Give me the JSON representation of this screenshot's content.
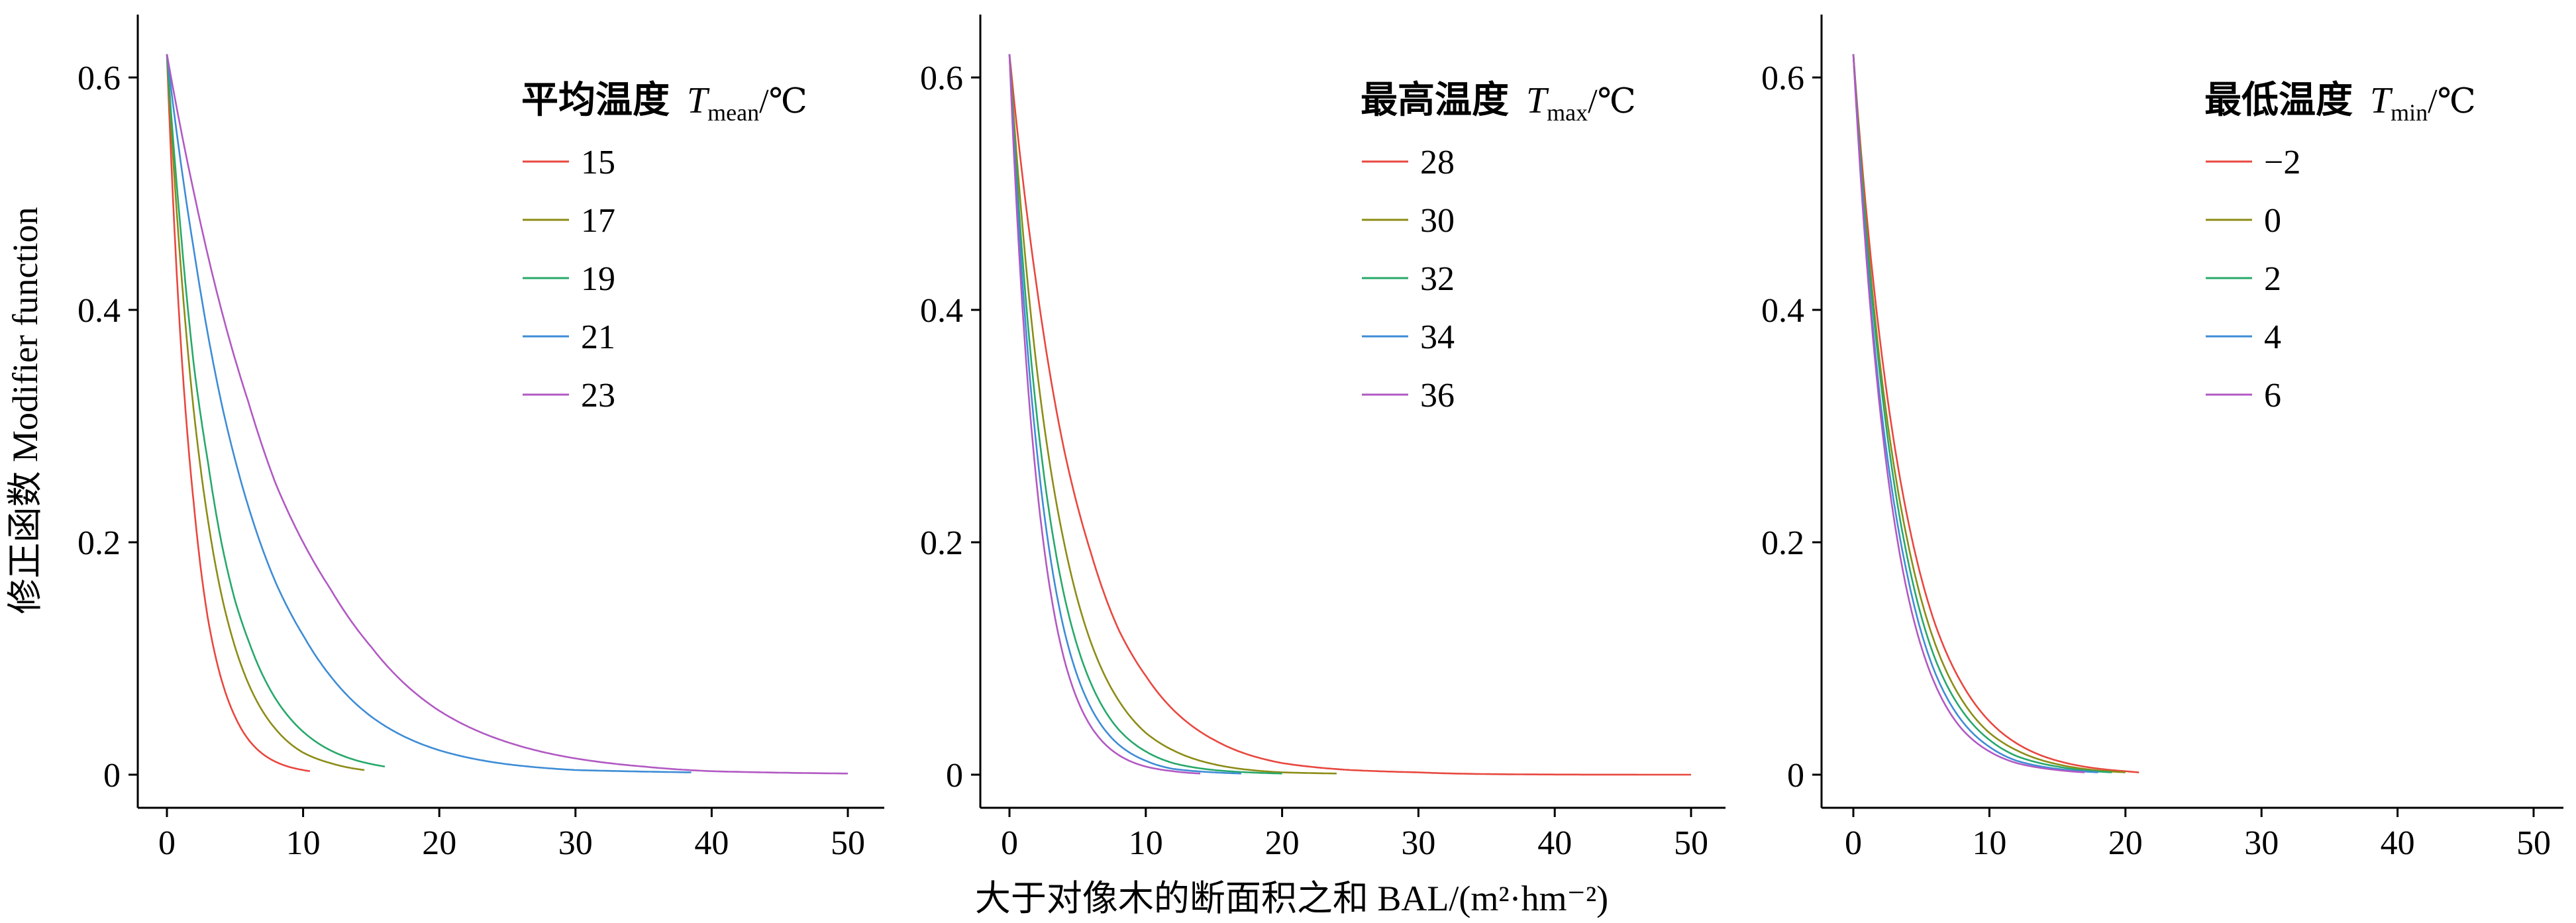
{
  "figure": {
    "ylabel": "修正函数  Modifier function",
    "xlabel": "大于对像木的断面积之和  BAL/(m²·hm⁻²)"
  },
  "chart_data": [
    {
      "type": "line",
      "legend_title": {
        "cn": "平均温度",
        "symbol": "T",
        "subscript": "mean",
        "unit": "/℃"
      },
      "legend_placement": "top-right",
      "xlim": [
        0,
        50
      ],
      "ylim": [
        0,
        0.62
      ],
      "xticks": [
        "0",
        "10",
        "20",
        "30",
        "40",
        "50"
      ],
      "yticks": [
        "0",
        "0.2",
        "0.4",
        "0.6"
      ],
      "grid": false,
      "series": [
        {
          "name": "15",
          "color": "#E8473F",
          "peak": 0.62,
          "x_end": 10.5,
          "points": [
            [
              0,
              0.62
            ],
            [
              1,
              0.375
            ],
            [
              2,
              0.23
            ],
            [
              3,
              0.135
            ],
            [
              4,
              0.082
            ],
            [
              5,
              0.05
            ],
            [
              6,
              0.03
            ],
            [
              8,
              0.011
            ],
            [
              10,
              0.004
            ],
            [
              10.5,
              0.003
            ]
          ]
        },
        {
          "name": "17",
          "color": "#8C8C17",
          "peak": 0.62,
          "x_end": 14.5,
          "points": [
            [
              0,
              0.62
            ],
            [
              1,
              0.44
            ],
            [
              2,
              0.31
            ],
            [
              3,
              0.22
            ],
            [
              4,
              0.155
            ],
            [
              5,
              0.11
            ],
            [
              6,
              0.078
            ],
            [
              8,
              0.039
            ],
            [
              10,
              0.019
            ],
            [
              12,
              0.01
            ],
            [
              14.5,
              0.004
            ]
          ]
        },
        {
          "name": "19",
          "color": "#27A86A",
          "peak": 0.62,
          "x_end": 16,
          "points": [
            [
              0,
              0.62
            ],
            [
              1,
              0.47
            ],
            [
              2,
              0.35
            ],
            [
              3,
              0.27
            ],
            [
              4,
              0.2
            ],
            [
              5,
              0.15
            ],
            [
              6,
              0.115
            ],
            [
              8,
              0.065
            ],
            [
              10,
              0.037
            ],
            [
              12,
              0.021
            ],
            [
              14,
              0.012
            ],
            [
              16,
              0.007
            ]
          ]
        },
        {
          "name": "21",
          "color": "#3E8CD6",
          "peak": 0.62,
          "x_end": 38.5,
          "points": [
            [
              0,
              0.62
            ],
            [
              2,
              0.45
            ],
            [
              4,
              0.32
            ],
            [
              6,
              0.23
            ],
            [
              8,
              0.165
            ],
            [
              10,
              0.12
            ],
            [
              12,
              0.085
            ],
            [
              15,
              0.05
            ],
            [
              20,
              0.021
            ],
            [
              25,
              0.009
            ],
            [
              30,
              0.004
            ],
            [
              38.5,
              0.002
            ]
          ]
        },
        {
          "name": "23",
          "color": "#B159C3",
          "peak": 0.62,
          "x_end": 50,
          "points": [
            [
              0,
              0.62
            ],
            [
              2,
              0.5
            ],
            [
              4,
              0.4
            ],
            [
              6,
              0.32
            ],
            [
              8,
              0.25
            ],
            [
              10,
              0.2
            ],
            [
              12,
              0.16
            ],
            [
              15,
              0.11
            ],
            [
              20,
              0.055
            ],
            [
              25,
              0.028
            ],
            [
              30,
              0.014
            ],
            [
              35,
              0.007
            ],
            [
              40,
              0.003
            ],
            [
              50,
              0.001
            ]
          ]
        }
      ]
    },
    {
      "type": "line",
      "legend_title": {
        "cn": "最高温度",
        "symbol": "T",
        "subscript": "max",
        "unit": "/℃"
      },
      "legend_placement": "top-right",
      "xlim": [
        0,
        50
      ],
      "ylim": [
        0,
        0.62
      ],
      "xticks": [
        "0",
        "10",
        "20",
        "30",
        "40",
        "50"
      ],
      "yticks": [
        "0",
        "0.2",
        "0.4",
        "0.6"
      ],
      "grid": false,
      "series": [
        {
          "name": "28",
          "color": "#E8473F",
          "peak": 0.62,
          "x_end": 50,
          "points": [
            [
              0,
              0.62
            ],
            [
              2,
              0.42
            ],
            [
              4,
              0.28
            ],
            [
              6,
              0.19
            ],
            [
              8,
              0.125
            ],
            [
              10,
              0.085
            ],
            [
              12,
              0.056
            ],
            [
              15,
              0.03
            ],
            [
              20,
              0.01
            ],
            [
              25,
              0.004
            ],
            [
              30,
              0.002
            ],
            [
              50,
              0.0
            ]
          ]
        },
        {
          "name": "30",
          "color": "#8C8C17",
          "peak": 0.62,
          "x_end": 24,
          "points": [
            [
              0,
              0.62
            ],
            [
              2,
              0.35
            ],
            [
              4,
              0.2
            ],
            [
              6,
              0.113
            ],
            [
              8,
              0.064
            ],
            [
              10,
              0.036
            ],
            [
              12,
              0.021
            ],
            [
              15,
              0.009
            ],
            [
              20,
              0.002
            ],
            [
              24,
              0.001
            ]
          ]
        },
        {
          "name": "32",
          "color": "#27A86A",
          "peak": 0.62,
          "x_end": 20,
          "points": [
            [
              0,
              0.62
            ],
            [
              2,
              0.31
            ],
            [
              4,
              0.155
            ],
            [
              6,
              0.078
            ],
            [
              8,
              0.039
            ],
            [
              10,
              0.02
            ],
            [
              12,
              0.01
            ],
            [
              15,
              0.004
            ],
            [
              20,
              0.001
            ]
          ]
        },
        {
          "name": "34",
          "color": "#3E8CD6",
          "peak": 0.62,
          "x_end": 17,
          "points": [
            [
              0,
              0.62
            ],
            [
              2,
              0.28
            ],
            [
              4,
              0.125
            ],
            [
              6,
              0.057
            ],
            [
              8,
              0.026
            ],
            [
              10,
              0.012
            ],
            [
              12,
              0.005
            ],
            [
              15,
              0.002
            ],
            [
              17,
              0.001
            ]
          ]
        },
        {
          "name": "36",
          "color": "#B159C3",
          "peak": 0.62,
          "x_end": 14,
          "points": [
            [
              0,
              0.62
            ],
            [
              2,
              0.25
            ],
            [
              4,
              0.1
            ],
            [
              6,
              0.041
            ],
            [
              8,
              0.017
            ],
            [
              10,
              0.007
            ],
            [
              12,
              0.003
            ],
            [
              14,
              0.001
            ]
          ]
        }
      ]
    },
    {
      "type": "line",
      "legend_title": {
        "cn": "最低温度",
        "symbol": "T",
        "subscript": "min",
        "unit": "/℃"
      },
      "legend_placement": "top-right",
      "xlim": [
        0,
        50
      ],
      "ylim": [
        0,
        0.62
      ],
      "xticks": [
        "0",
        "10",
        "20",
        "30",
        "40",
        "50"
      ],
      "yticks": [
        "0",
        "0.2",
        "0.4",
        "0.6"
      ],
      "grid": false,
      "series": [
        {
          "name": "−2",
          "color": "#E8473F",
          "peak": 0.62,
          "x_end": 21,
          "points": [
            [
              0,
              0.62
            ],
            [
              2,
              0.37
            ],
            [
              4,
              0.22
            ],
            [
              6,
              0.13
            ],
            [
              8,
              0.078
            ],
            [
              10,
              0.046
            ],
            [
              12,
              0.027
            ],
            [
              15,
              0.012
            ],
            [
              20,
              0.003
            ],
            [
              21,
              0.002
            ]
          ]
        },
        {
          "name": "0",
          "color": "#8C8C17",
          "peak": 0.62,
          "x_end": 20,
          "points": [
            [
              0,
              0.62
            ],
            [
              2,
              0.35
            ],
            [
              4,
              0.2
            ],
            [
              6,
              0.113
            ],
            [
              8,
              0.064
            ],
            [
              10,
              0.036
            ],
            [
              12,
              0.021
            ],
            [
              15,
              0.009
            ],
            [
              20,
              0.002
            ]
          ]
        },
        {
          "name": "2",
          "color": "#27A86A",
          "peak": 0.62,
          "x_end": 19,
          "points": [
            [
              0,
              0.62
            ],
            [
              2,
              0.34
            ],
            [
              4,
              0.185
            ],
            [
              6,
              0.1
            ],
            [
              8,
              0.055
            ],
            [
              10,
              0.03
            ],
            [
              12,
              0.016
            ],
            [
              15,
              0.007
            ],
            [
              19,
              0.002
            ]
          ]
        },
        {
          "name": "4",
          "color": "#3E8CD6",
          "peak": 0.62,
          "x_end": 18,
          "points": [
            [
              0,
              0.62
            ],
            [
              2,
              0.32
            ],
            [
              4,
              0.17
            ],
            [
              6,
              0.088
            ],
            [
              8,
              0.046
            ],
            [
              10,
              0.024
            ],
            [
              12,
              0.012
            ],
            [
              15,
              0.005
            ],
            [
              18,
              0.002
            ]
          ]
        },
        {
          "name": "6",
          "color": "#B159C3",
          "peak": 0.62,
          "x_end": 17,
          "points": [
            [
              0,
              0.62
            ],
            [
              2,
              0.31
            ],
            [
              4,
              0.155
            ],
            [
              6,
              0.078
            ],
            [
              8,
              0.039
            ],
            [
              10,
              0.02
            ],
            [
              12,
              0.01
            ],
            [
              15,
              0.004
            ],
            [
              17,
              0.002
            ]
          ]
        }
      ]
    }
  ]
}
